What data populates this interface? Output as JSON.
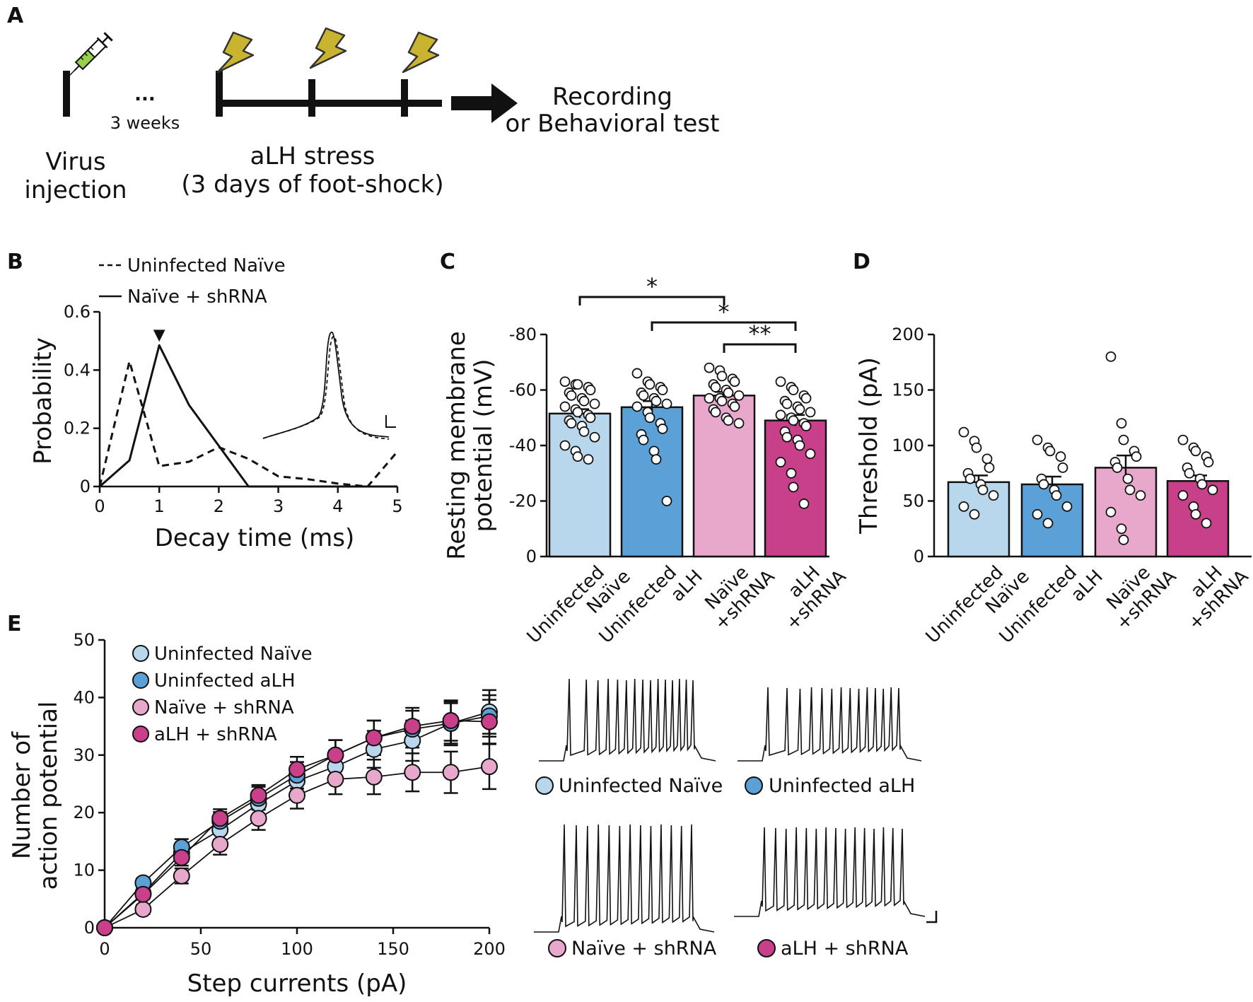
{
  "panelA": {
    "letter": "A",
    "dots": "...",
    "weeks_label": "3 weeks",
    "virus_label_line1": "Virus",
    "virus_label_line2": "injection",
    "stress_label_line1": "aLH stress",
    "stress_label_line2": "(3 days of foot-shock)",
    "outcome_line1": "Recording",
    "outcome_line2": "or Behavioral test",
    "icons": [
      "syringe-icon",
      "lightning-bolt-icon",
      "lightning-bolt-icon",
      "lightning-bolt-icon",
      "arrow-right-icon"
    ]
  },
  "colors": {
    "uninfected_naive": "#b9d7ec",
    "uninfected_alh": "#5ba0d6",
    "naive_shrna": "#e8a8cb",
    "alh_shrna": "#c8408a",
    "lightning": "#c8b42e",
    "syringe_liquid": "#98d04a"
  },
  "chart_data": [
    {
      "panel": "B",
      "type": "line",
      "letter": "B",
      "xlabel": "Decay time (ms)",
      "ylabel": "Probability",
      "xlim": [
        0,
        5
      ],
      "ylim": [
        0,
        0.6
      ],
      "xticks": [
        "0",
        "1",
        "2",
        "3",
        "4",
        "5"
      ],
      "yticks": [
        "0",
        "0.2",
        "0.4",
        "0.6"
      ],
      "marker_label": "▼",
      "series": [
        {
          "name": "Uninfected Naïve",
          "style": "dashed",
          "x": [
            0,
            0.5,
            1,
            1.5,
            2,
            2.5,
            3,
            3.5,
            4,
            4.5,
            5
          ],
          "y": [
            0.0,
            0.43,
            0.07,
            0.085,
            0.135,
            0.095,
            0.035,
            0.025,
            0.01,
            0.0,
            0.12
          ]
        },
        {
          "name": "Naïve + shRNA",
          "style": "solid",
          "x": [
            0,
            0.5,
            1,
            1.5,
            2,
            2.5,
            3,
            3.5,
            4,
            4.5,
            5
          ],
          "y": [
            0.0,
            0.09,
            0.485,
            0.28,
            0.14,
            0.0,
            0.0,
            0.0,
            0.0,
            0.0,
            0.0
          ]
        }
      ]
    },
    {
      "panel": "C",
      "type": "bar",
      "letter": "C",
      "ylabel_line1": "Resting membrane",
      "ylabel_line2": "potential (mV)",
      "ylim": [
        0,
        -80
      ],
      "yticks": [
        "0",
        "-20",
        "-40",
        "-60",
        "-80"
      ],
      "categories": [
        "Uninfected Naïve",
        "Uninfected aLH",
        "Naïve +shRNA",
        "aLH +shRNA"
      ],
      "category_lines": [
        [
          "Uninfected",
          "Naïve"
        ],
        [
          "Uninfected",
          "aLH"
        ],
        [
          "Naïve",
          "+shRNA"
        ],
        [
          "aLH",
          "+shRNA"
        ]
      ],
      "values": [
        -51.5,
        -53.8,
        -58.0,
        -49.0
      ],
      "errors": [
        1.6,
        2.2,
        1.3,
        2.0
      ],
      "points": [
        [
          -63,
          -62,
          -62,
          -61,
          -60,
          -59,
          -58,
          -57,
          -56,
          -55,
          -54,
          -53,
          -52,
          -51,
          -50,
          -49,
          -48,
          -47,
          -45,
          -43,
          -40,
          -38,
          -36,
          -35
        ],
        [
          -66,
          -63,
          -62,
          -61,
          -60,
          -59,
          -58,
          -57,
          -56,
          -55,
          -54,
          -52,
          -50,
          -48,
          -46,
          -44,
          -42,
          -38,
          -35,
          -20
        ],
        [
          -68,
          -67,
          -65,
          -64,
          -63,
          -62,
          -61,
          -60,
          -59,
          -58,
          -57,
          -57,
          -56,
          -55,
          -54,
          -53,
          -52,
          -50,
          -49,
          -48
        ],
        [
          -63,
          -61,
          -60,
          -58,
          -57,
          -56,
          -55,
          -54,
          -53,
          -52,
          -51,
          -50,
          -49,
          -48,
          -47,
          -45,
          -43,
          -42,
          -40,
          -37,
          -34,
          -30,
          -25,
          -19
        ]
      ],
      "significance": [
        {
          "from": 0,
          "to": 2,
          "label": "*"
        },
        {
          "from": 1,
          "to": 3,
          "label": "*"
        },
        {
          "from": 2,
          "to": 3,
          "label": "**"
        }
      ]
    },
    {
      "panel": "D",
      "type": "bar",
      "letter": "D",
      "ylabel": "Threshold (pA)",
      "ylim": [
        0,
        200
      ],
      "yticks": [
        "0",
        "50",
        "100",
        "150",
        "200"
      ],
      "categories": [
        "Uninfected Naïve",
        "Uninfected aLH",
        "Naïve +shRNA",
        "aLH +shRNA"
      ],
      "category_lines": [
        [
          "Uninfected",
          "Naïve"
        ],
        [
          "Uninfected",
          "aLH"
        ],
        [
          "Naïve",
          "+shRNA"
        ],
        [
          "aLH",
          "+shRNA"
        ]
      ],
      "values": [
        67,
        65,
        80,
        68
      ],
      "errors": [
        6,
        7,
        11,
        5
      ],
      "points": [
        [
          112,
          104,
          98,
          88,
          80,
          75,
          70,
          65,
          60,
          55,
          45,
          38
        ],
        [
          105,
          98,
          95,
          90,
          80,
          70,
          65,
          60,
          55,
          45,
          38,
          30
        ],
        [
          180,
          120,
          105,
          95,
          90,
          85,
          80,
          70,
          60,
          55,
          40,
          25,
          15
        ],
        [
          105,
          98,
          95,
          90,
          85,
          80,
          75,
          70,
          65,
          60,
          55,
          45,
          38,
          30
        ]
      ]
    },
    {
      "panel": "E",
      "type": "scatter",
      "letter": "E",
      "xlabel": "Step currents (pA)",
      "ylabel_line1": "Number of",
      "ylabel_line2": "action potential",
      "xlim": [
        0,
        200
      ],
      "ylim": [
        0,
        50
      ],
      "xticks": [
        "0",
        "50",
        "100",
        "150",
        "200"
      ],
      "yticks": [
        "0",
        "10",
        "20",
        "30",
        "40",
        "50"
      ],
      "x": [
        0,
        20,
        40,
        60,
        80,
        100,
        120,
        140,
        160,
        180,
        200
      ],
      "series": [
        {
          "name": "Uninfected Naïve",
          "values": [
            0,
            6.0,
            13.0,
            17.0,
            21.5,
            25.5,
            28.0,
            31.0,
            32.5,
            35.5,
            37.5
          ],
          "errors": [
            0,
            0.8,
            1.5,
            1.7,
            2.0,
            2.5,
            2.8,
            3.2,
            3.5,
            3.8,
            3.8
          ]
        },
        {
          "name": "Uninfected aLH",
          "values": [
            0,
            7.8,
            14.0,
            18.5,
            22.5,
            26.5,
            30.0,
            33.0,
            34.5,
            35.5,
            36.8
          ],
          "errors": [
            0,
            0.8,
            1.4,
            1.6,
            2.0,
            2.3,
            2.6,
            3.0,
            3.2,
            3.5,
            3.6
          ]
        },
        {
          "name": "Naïve + shRNA",
          "values": [
            0,
            3.2,
            9.0,
            14.5,
            19.0,
            23.0,
            25.8,
            26.2,
            27.0,
            27.0,
            28.0
          ],
          "errors": [
            0,
            0.8,
            1.3,
            1.8,
            2.0,
            2.3,
            2.6,
            3.0,
            3.3,
            3.6,
            3.9
          ]
        },
        {
          "name": "aLH + shRNA",
          "values": [
            0,
            5.8,
            12.2,
            19.0,
            23.0,
            27.5,
            30.0,
            33.0,
            35.0,
            36.0,
            35.8
          ],
          "errors": [
            0,
            0.8,
            1.4,
            1.6,
            1.8,
            2.2,
            2.6,
            3.0,
            3.2,
            3.5,
            3.8
          ]
        }
      ]
    }
  ],
  "panelE_traces": [
    {
      "label": "Uninfected Naïve",
      "spikes": 15
    },
    {
      "label": "Uninfected aLH",
      "spikes": 14
    },
    {
      "label": "Naïve + shRNA",
      "spikes": 13
    },
    {
      "label": "aLH + shRNA",
      "spikes": 15
    }
  ]
}
